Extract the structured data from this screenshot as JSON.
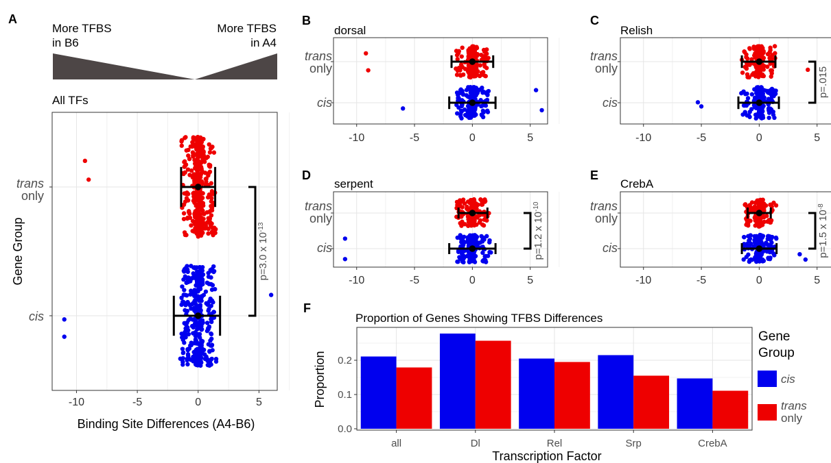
{
  "panel_letters": {
    "a": "A",
    "b": "B",
    "c": "C",
    "d": "D",
    "e": "E",
    "f": "F"
  },
  "schematic": {
    "left_label": [
      "More TFBS",
      "in B6"
    ],
    "right_label": [
      "More TFBS",
      "in A4"
    ]
  },
  "group_labels": {
    "trans_italic": "trans",
    "trans_suffix": "only",
    "cis": "cis"
  },
  "colors": {
    "cis": "#0000ee",
    "trans": "#ee0000",
    "wedge": "#4d4646",
    "summary": "#000000"
  },
  "chart_data": [
    {
      "type": "scatter",
      "panel": "A",
      "title": "All TFs",
      "xlabel": "Binding Site Differences (A4-B6)",
      "ylabel": "Gene Group",
      "xlim": [
        -12,
        6.5
      ],
      "xticks": [
        -10,
        -5,
        0,
        5
      ],
      "groups": [
        "trans only",
        "cis"
      ],
      "summary": {
        "trans": {
          "mean": 0,
          "sd_low": -1.4,
          "sd_high": 1.4
        },
        "cis": {
          "mean": 0,
          "sd_low": -2.0,
          "sd_high": 1.8
        }
      },
      "outliers": {
        "trans": [
          -9,
          -9.3
        ],
        "cis": [
          -11,
          -11,
          6
        ]
      },
      "pvalue": "p=3.0 x 10",
      "pvalue_exp": "-13",
      "grid": true
    },
    {
      "type": "scatter",
      "panel": "B",
      "title": "dorsal",
      "xlim": [
        -12,
        6.5
      ],
      "xticks": [
        -10,
        -5,
        0,
        5
      ],
      "summary": {
        "trans": {
          "mean": 0,
          "sd_low": -1.8,
          "sd_high": 1.8
        },
        "cis": {
          "mean": 0,
          "sd_low": -2.0,
          "sd_high": 2.0
        }
      },
      "outliers": {
        "trans": [
          -9,
          -9.2
        ],
        "cis": [
          -6,
          5.5,
          6
        ]
      },
      "pvalue": "",
      "grid": true
    },
    {
      "type": "scatter",
      "panel": "C",
      "title": "Relish",
      "xlim": [
        -12,
        6.5
      ],
      "xticks": [
        -10,
        -5,
        0,
        5
      ],
      "summary": {
        "trans": {
          "mean": 0,
          "sd_low": -1.5,
          "sd_high": 1.4
        },
        "cis": {
          "mean": 0,
          "sd_low": -1.8,
          "sd_high": 1.7
        }
      },
      "outliers": {
        "trans": [
          4.2
        ],
        "cis": [
          -5,
          -5.3
        ]
      },
      "pvalue": "p=.015",
      "grid": true
    },
    {
      "type": "scatter",
      "panel": "D",
      "title": "serpent",
      "xlim": [
        -12,
        6.5
      ],
      "xticks": [
        -10,
        -5,
        0,
        5
      ],
      "summary": {
        "trans": {
          "mean": 0,
          "sd_low": -1.2,
          "sd_high": 1.3
        },
        "cis": {
          "mean": 0,
          "sd_low": -2.0,
          "sd_high": 2.0
        }
      },
      "outliers": {
        "trans": [],
        "cis": [
          -11,
          -11
        ]
      },
      "pvalue": "p=1.2 x 10",
      "pvalue_exp": "-10",
      "grid": true
    },
    {
      "type": "scatter",
      "panel": "E",
      "title": "CrebA",
      "xlim": [
        -12,
        6.5
      ],
      "xticks": [
        -10,
        -5,
        0,
        5
      ],
      "summary": {
        "trans": {
          "mean": 0,
          "sd_low": -1.0,
          "sd_high": 1.0
        },
        "cis": {
          "mean": 0,
          "sd_low": -1.5,
          "sd_high": 1.5
        }
      },
      "outliers": {
        "trans": [],
        "cis": [
          3.5,
          4
        ]
      },
      "pvalue": "p=1.5 x 10",
      "pvalue_exp": "-8",
      "grid": true
    },
    {
      "type": "bar",
      "panel": "F",
      "title": "Proportion of Genes Showing TFBS Differences",
      "xlabel": "Transcription Factor",
      "ylabel": "Proportion",
      "categories": [
        "all",
        "Dl",
        "Rel",
        "Srp",
        "CrebA"
      ],
      "series": [
        {
          "name": "cis",
          "values": [
            0.211,
            0.278,
            0.205,
            0.215,
            0.147
          ]
        },
        {
          "name": "trans only",
          "values": [
            0.179,
            0.257,
            0.195,
            0.155,
            0.111
          ]
        }
      ],
      "ylim": [
        0,
        0.3
      ],
      "yticks": [
        "0.0",
        "0.1",
        "0.2"
      ],
      "legend": {
        "title": [
          "Gene",
          "Group"
        ],
        "position": "right"
      },
      "grid": true
    }
  ]
}
